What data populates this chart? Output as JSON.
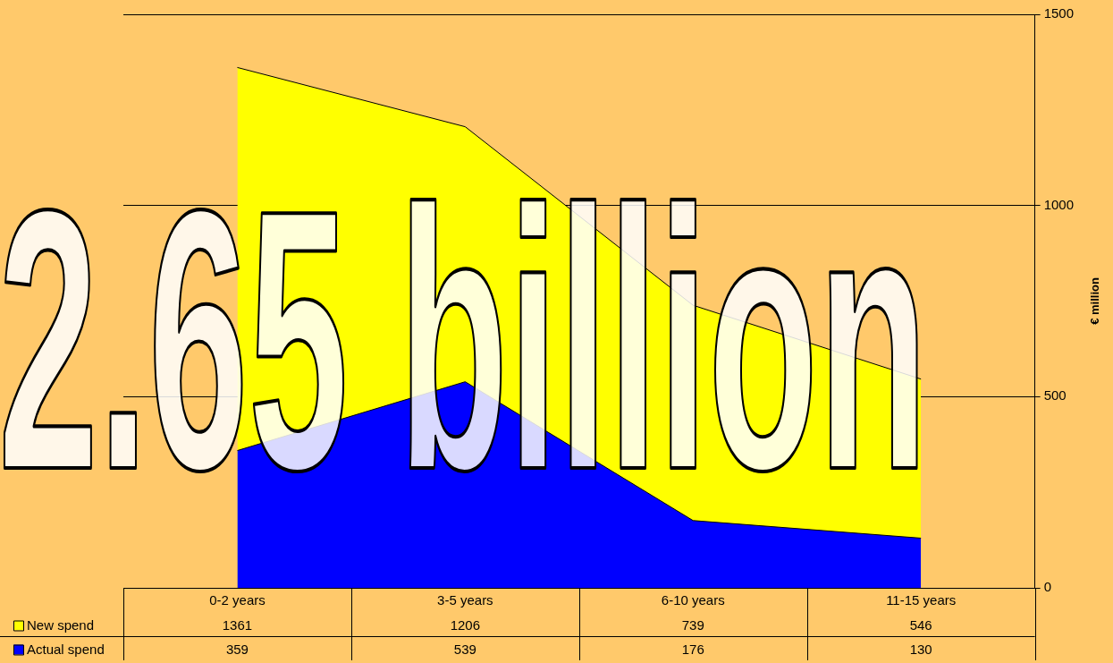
{
  "chart_data": {
    "type": "area",
    "ylabel": "€ million",
    "categories": [
      "0-2 years",
      "3-5 years",
      "6-10 years",
      "11-15 years"
    ],
    "series": [
      {
        "name": "New spend",
        "color": "#ffff00",
        "values": [
          1361,
          1206,
          739,
          546
        ]
      },
      {
        "name": "Actual spend",
        "color": "#0000ff",
        "values": [
          359,
          539,
          176,
          130
        ]
      }
    ],
    "ylim": [
      0,
      1500
    ],
    "yticks": [
      0,
      500,
      1000,
      1500
    ],
    "grid": "y",
    "legend": "bottom left",
    "data_labels": true,
    "marker": "none",
    "line_style": "solid",
    "annotations": [
      "2.65 billion"
    ]
  }
}
